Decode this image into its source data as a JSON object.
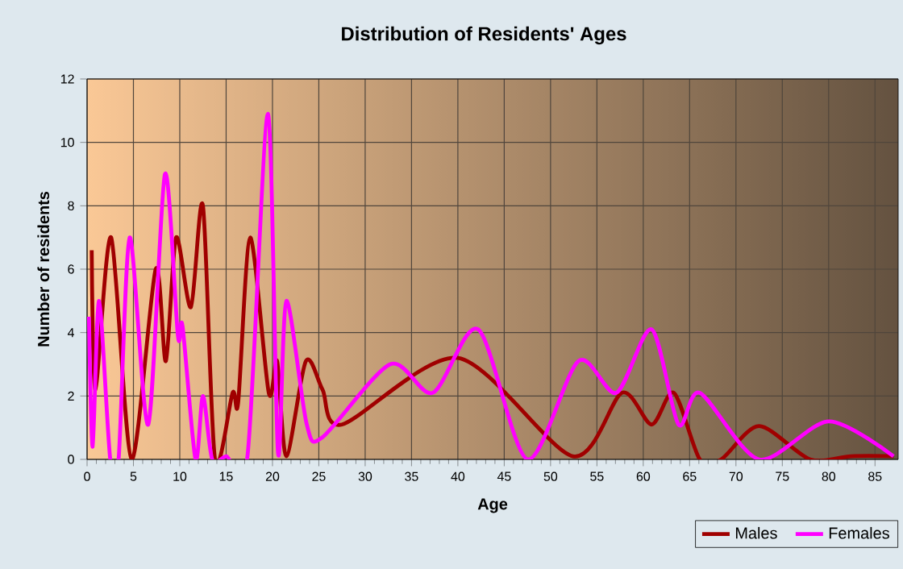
{
  "chart_data": {
    "type": "line",
    "title": "Distribution of Residents' Ages",
    "xlabel": "Age",
    "ylabel": "Number of residents",
    "xlim": [
      0,
      87.5
    ],
    "xticks": [
      0,
      5,
      10,
      15,
      20,
      25,
      30,
      35,
      40,
      45,
      50,
      55,
      60,
      65,
      70,
      75,
      80,
      85
    ],
    "ylim": [
      0,
      12
    ],
    "yticks": [
      0,
      2,
      4,
      6,
      8,
      10,
      12
    ],
    "grid": true,
    "legend": "bottom right",
    "marker": "none",
    "series": [
      {
        "name": "Males",
        "color": "#a00000",
        "x": [
          0.5,
          0.9,
          2.6,
          4.8,
          7.4,
          8.5,
          9.6,
          11.2,
          12.5,
          13.8,
          15.7,
          16.3,
          17.6,
          19.6,
          20.5,
          21.5,
          23.6,
          25.4,
          27.5,
          40,
          52.4,
          57.7,
          60.9,
          63.3,
          66.1,
          68.4,
          72.5,
          78,
          82.4,
          87
        ],
        "values": [
          6.6,
          2.2,
          7.0,
          0,
          6.0,
          3.1,
          7.0,
          4.8,
          8.0,
          0,
          2.1,
          1.8,
          7.0,
          2.1,
          3.1,
          0.1,
          3.1,
          2.2,
          1.1,
          3.2,
          0.1,
          2.1,
          1.1,
          2.1,
          0,
          0,
          1.05,
          0,
          0.1,
          0.1
        ]
      },
      {
        "name": "Females",
        "color": "#ff00ff",
        "x": [
          0.2,
          0.6,
          1.3,
          2.5,
          3.4,
          4.6,
          6.6,
          8.4,
          9.8,
          10.3,
          11.7,
          12.5,
          13.5,
          15,
          17.3,
          19.5,
          20.6,
          21.5,
          23.7,
          25.4,
          32.7,
          37.3,
          42.2,
          47.5,
          53,
          57.1,
          60.9,
          63.8,
          66.1,
          72.5,
          80,
          87
        ],
        "values": [
          4.5,
          0.4,
          5.0,
          0,
          0,
          7.0,
          1.1,
          9.0,
          3.9,
          4.2,
          0,
          2.0,
          0,
          0.1,
          0.1,
          10.9,
          0.2,
          5.0,
          1.1,
          0.7,
          3.0,
          2.1,
          4.1,
          0,
          3.1,
          2.1,
          4.1,
          1.1,
          2.1,
          0,
          1.2,
          0.1
        ]
      }
    ]
  }
}
